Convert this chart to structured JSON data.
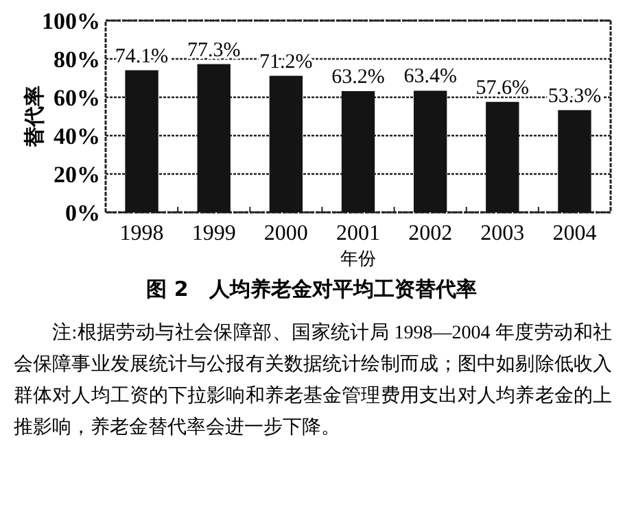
{
  "chart_data": {
    "type": "bar",
    "title": "图 2　人均养老金对平均工资替代率",
    "xlabel": "年份",
    "ylabel": "替代率",
    "categories": [
      "1998",
      "1999",
      "2000",
      "2001",
      "2002",
      "2003",
      "2004"
    ],
    "values": [
      74.1,
      77.3,
      71.2,
      63.2,
      63.4,
      57.6,
      53.3
    ],
    "value_labels": [
      "74.1%",
      "77.3%",
      "71.2%",
      "63.2%",
      "63.4%",
      "57.6%",
      "53.3%"
    ],
    "color": "#141414",
    "ylim": [
      0,
      100
    ],
    "yticks": [
      {
        "value": 0,
        "label": "0%"
      },
      {
        "value": 20,
        "label": "20%"
      },
      {
        "value": 40,
        "label": "40%"
      },
      {
        "value": 60,
        "label": "60%"
      },
      {
        "value": 80,
        "label": "80%"
      },
      {
        "value": 100,
        "label": "100%"
      }
    ],
    "grid": "y",
    "annotations": [
      "注:根据劳动与社会保障部、国家统计局 1998—2004 年度劳动和社会保障事业发展统计与公报有关数据统计绘制而成；图中如剔除低收入群体对人均工资的下拉影响和养老基金管理费用支出对人均养老金的上推影响，养老金替代率会进一步下降。"
    ]
  }
}
